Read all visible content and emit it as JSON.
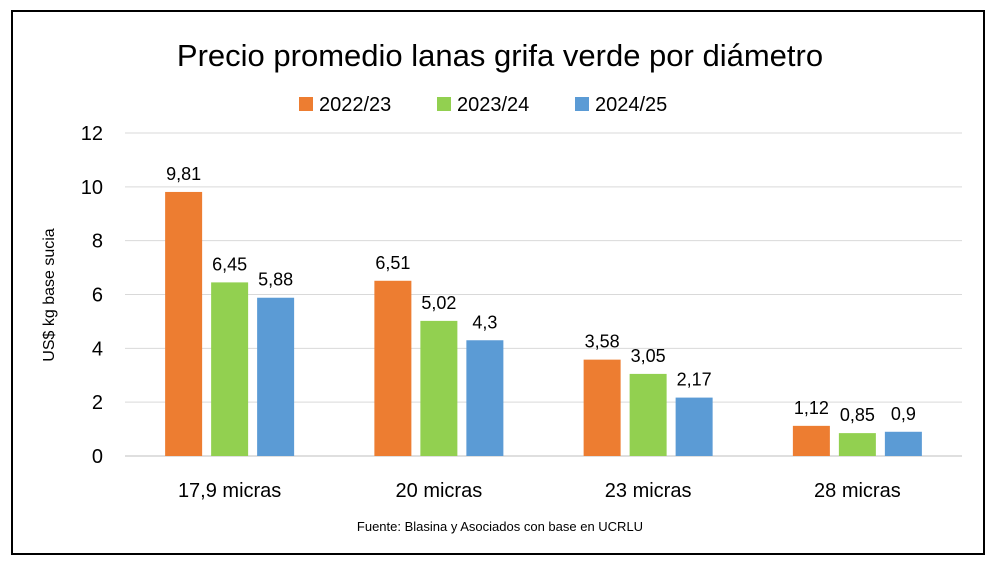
{
  "chart_data": {
    "type": "bar",
    "title": "Precio promedio lanas grifa verde por diámetro",
    "ylabel": "US$ kg base sucia",
    "xlabel": "",
    "categories": [
      "17,9 micras",
      "20 micras",
      "23 micras",
      "28 micras"
    ],
    "series": [
      {
        "name": "2022/23",
        "color": "#ED7D31",
        "values": [
          9.81,
          6.51,
          3.58,
          1.12
        ],
        "labels": [
          "9,81",
          "6,51",
          "3,58",
          "1,12"
        ]
      },
      {
        "name": "2023/24",
        "color": "#92D050",
        "values": [
          6.45,
          5.02,
          3.05,
          0.85
        ],
        "labels": [
          "6,45",
          "5,02",
          "3,05",
          "0,85"
        ]
      },
      {
        "name": "2024/25",
        "color": "#5B9BD5",
        "values": [
          5.88,
          4.3,
          2.17,
          0.9
        ],
        "labels": [
          "5,88",
          "4,3",
          "2,17",
          "0,9"
        ]
      }
    ],
    "ylim": [
      0,
      12
    ],
    "yticks": [
      "0",
      "2",
      "4",
      "6",
      "8",
      "10",
      "12"
    ],
    "grid": true,
    "legend_position": "top",
    "source": "Fuente: Blasina y Asociados con base en UCRLU"
  }
}
